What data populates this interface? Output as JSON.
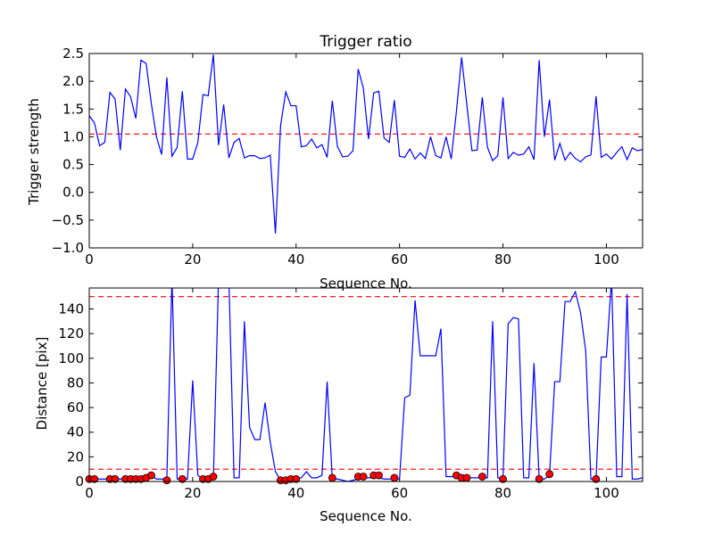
{
  "chart_data": [
    {
      "type": "line",
      "title": "Trigger ratio",
      "xlabel": "Sequence No.",
      "ylabel": "Trigger strength",
      "xlim": [
        0,
        107
      ],
      "ylim": [
        -1.0,
        2.5
      ],
      "xticks": [
        0,
        20,
        40,
        60,
        80,
        100
      ],
      "yticks": [
        -1.0,
        -0.5,
        0.0,
        0.5,
        1.0,
        1.5,
        2.0,
        2.5
      ],
      "xtick_labels": [
        "0",
        "20",
        "40",
        "60",
        "80",
        "100"
      ],
      "ytick_labels": [
        "−1.0",
        "−0.5",
        "0.0",
        "0.5",
        "1.0",
        "1.5",
        "2.0",
        "2.5"
      ],
      "grid": false,
      "colors": {
        "line": "#0000ff",
        "threshold": "#ff0000"
      },
      "thresholds": [
        1.05
      ],
      "series": [
        {
          "x": [
            0,
            1,
            2,
            3,
            4,
            5,
            6,
            7,
            8,
            9,
            10,
            11,
            12,
            13,
            14,
            15,
            16,
            17,
            18,
            19,
            20,
            21,
            22,
            23,
            24,
            25,
            26,
            27,
            28,
            29,
            30,
            31,
            32,
            33,
            34,
            35,
            36,
            37,
            38,
            39,
            40,
            41,
            42,
            43,
            44,
            45,
            46,
            47,
            48,
            49,
            50,
            51,
            52,
            53,
            54,
            55,
            56,
            57,
            58,
            59,
            60,
            61,
            62,
            63,
            64,
            65,
            66,
            67,
            68,
            69,
            70,
            71,
            72,
            73,
            74,
            75,
            76,
            77,
            78,
            79,
            80,
            81,
            82,
            83,
            84,
            85,
            86,
            87,
            88,
            89,
            90,
            91,
            92,
            93,
            94,
            95,
            96,
            97,
            98,
            99,
            100,
            101,
            102,
            103,
            104,
            105,
            106,
            107
          ],
          "values": [
            1.38,
            1.25,
            0.84,
            0.9,
            1.8,
            1.68,
            0.76,
            1.86,
            1.72,
            1.33,
            2.38,
            2.32,
            1.6,
            1.0,
            0.68,
            2.07,
            0.65,
            0.81,
            1.82,
            0.6,
            0.6,
            0.9,
            1.76,
            1.74,
            2.48,
            0.85,
            1.58,
            0.62,
            0.9,
            0.97,
            0.62,
            0.66,
            0.66,
            0.61,
            0.62,
            0.67,
            -0.74,
            1.2,
            1.81,
            1.56,
            1.56,
            0.82,
            0.84,
            0.96,
            0.8,
            0.86,
            0.63,
            1.65,
            0.82,
            0.64,
            0.65,
            0.75,
            2.22,
            1.88,
            0.96,
            1.79,
            1.82,
            0.98,
            0.9,
            1.66,
            0.65,
            0.63,
            0.78,
            0.6,
            0.71,
            0.61,
            1.0,
            0.66,
            0.62,
            1.0,
            0.6,
            1.46,
            2.43,
            1.59,
            0.75,
            0.76,
            1.71,
            0.81,
            0.57,
            0.66,
            1.71,
            0.61,
            0.72,
            0.67,
            0.69,
            0.82,
            0.59,
            2.38,
            1.0,
            1.67,
            0.58,
            0.88,
            0.58,
            0.72,
            0.61,
            0.55,
            0.64,
            0.67,
            1.73,
            0.63,
            0.69,
            0.6,
            0.72,
            0.82,
            0.59,
            0.8,
            0.75,
            0.77
          ]
        }
      ]
    },
    {
      "type": "line",
      "title": "",
      "xlabel": "Sequence No.",
      "ylabel": "Distance [pix]",
      "xlim": [
        0,
        107
      ],
      "ylim": [
        0,
        157
      ],
      "xticks": [
        0,
        20,
        40,
        60,
        80,
        100
      ],
      "yticks": [
        0,
        20,
        40,
        60,
        80,
        100,
        120,
        140
      ],
      "xtick_labels": [
        "0",
        "20",
        "40",
        "60",
        "80",
        "100"
      ],
      "ytick_labels": [
        "0",
        "20",
        "40",
        "60",
        "80",
        "100",
        "120",
        "140"
      ],
      "grid": false,
      "colors": {
        "line": "#0000ff",
        "threshold": "#ff0000",
        "marker": "#ff0000"
      },
      "thresholds": [
        150,
        10
      ],
      "series": [
        {
          "x": [
            0,
            1,
            2,
            3,
            4,
            5,
            6,
            7,
            8,
            9,
            10,
            11,
            12,
            13,
            14,
            15,
            16,
            17,
            18,
            19,
            20,
            21,
            22,
            23,
            24,
            25,
            26,
            27,
            28,
            29,
            30,
            31,
            32,
            33,
            34,
            35,
            36,
            37,
            38,
            39,
            40,
            41,
            42,
            43,
            44,
            45,
            46,
            47,
            48,
            49,
            50,
            51,
            52,
            53,
            54,
            55,
            56,
            57,
            58,
            59,
            60,
            61,
            62,
            63,
            64,
            65,
            66,
            67,
            68,
            69,
            70,
            71,
            72,
            73,
            74,
            75,
            76,
            77,
            78,
            79,
            80,
            81,
            82,
            83,
            84,
            85,
            86,
            87,
            88,
            89,
            90,
            91,
            92,
            93,
            94,
            95,
            96,
            97,
            98,
            99,
            100,
            101,
            102,
            103,
            104,
            105,
            106,
            107
          ],
          "values": [
            2,
            2,
            2,
            2,
            2,
            2,
            2,
            2,
            2,
            2,
            2,
            3,
            5,
            2,
            2,
            2,
            165,
            2,
            2,
            2,
            82,
            5,
            2,
            2,
            2,
            165,
            165,
            165,
            3,
            3,
            130,
            44,
            34,
            34,
            64,
            32,
            8,
            1,
            1,
            2,
            2,
            3,
            8,
            3,
            3,
            5,
            81,
            2,
            2,
            1,
            0,
            1,
            2,
            3,
            3,
            3,
            3,
            2,
            2,
            2,
            2,
            68,
            70,
            147,
            102,
            102,
            102,
            102,
            124,
            4,
            4,
            4,
            3,
            3,
            3,
            3,
            3,
            3,
            130,
            3,
            2,
            128,
            133,
            132,
            3,
            3,
            96,
            2,
            2,
            5,
            81,
            81,
            146,
            146,
            154,
            137,
            106,
            2,
            2,
            101,
            101,
            165,
            4,
            4,
            152,
            2,
            2,
            3
          ]
        },
        {
          "name": "markers",
          "x": [
            0,
            1,
            4,
            5,
            7,
            8,
            9,
            10,
            11,
            12,
            15,
            18,
            22,
            23,
            24,
            37,
            38,
            39,
            40,
            47,
            52,
            53,
            55,
            56,
            59,
            71,
            72,
            73,
            76,
            80,
            87,
            89,
            98
          ],
          "values": [
            2,
            2,
            2,
            2,
            2,
            2,
            2,
            2,
            3,
            5,
            1,
            2,
            2,
            2,
            4,
            1,
            1,
            2,
            2,
            3,
            4,
            4,
            5,
            5,
            3,
            5,
            3,
            3,
            4,
            2,
            2,
            6,
            2
          ]
        }
      ]
    }
  ]
}
